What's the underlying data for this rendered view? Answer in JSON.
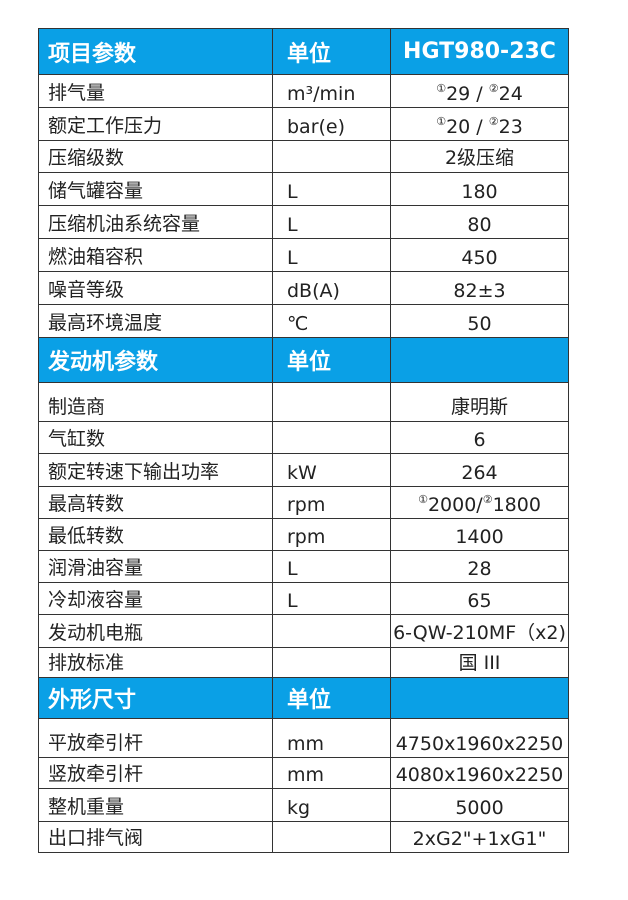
{
  "sections": [
    {
      "header": {
        "name": "项目参数",
        "unit": "单位",
        "value": "HGT980-23C"
      },
      "rows": [
        {
          "name": "排气量",
          "unit": "m³/min",
          "v1mark": "①",
          "v1": "29 / ",
          "v2mark": "②",
          "v2": "24"
        },
        {
          "name": "额定工作压力",
          "unit": "bar(e)",
          "v1mark": "①",
          "v1": "20 / ",
          "v2mark": "②",
          "v2": "23"
        },
        {
          "name": "压缩级数",
          "unit": "",
          "value": "2级压缩"
        },
        {
          "name": "储气罐容量",
          "unit": "L",
          "value": "180"
        },
        {
          "name": "压缩机油系统容量",
          "unit": "L",
          "value": "80"
        },
        {
          "name": "燃油箱容积",
          "unit": "L",
          "value": "450"
        },
        {
          "name": "噪音等级",
          "unit": "dB(A)",
          "value": "82±3"
        },
        {
          "name": "最高环境温度",
          "unit": "℃",
          "value": "50"
        }
      ]
    },
    {
      "header": {
        "name": "发动机参数",
        "unit": "单位",
        "value": ""
      },
      "rows": [
        {
          "name": "制造商",
          "unit": "",
          "value": "康明斯"
        },
        {
          "name": "气缸数",
          "unit": "",
          "value": "6"
        },
        {
          "name": "额定转速下输出功率",
          "unit": "kW",
          "value": "264"
        },
        {
          "name": "最高转数",
          "unit": "rpm",
          "v1mark": "①",
          "v1": "2000/",
          "v2mark": "②",
          "v2": "1800"
        },
        {
          "name": "最低转数",
          "unit": "rpm",
          "value": "1400"
        },
        {
          "name": "润滑油容量",
          "unit": "L",
          "value": "28"
        },
        {
          "name": "冷却液容量",
          "unit": "L",
          "value": "65"
        },
        {
          "name": "发动机电瓶",
          "unit": "",
          "value": "6-QW-210MF（x2)"
        },
        {
          "name": "排放标准",
          "unit": "",
          "value": "国 III"
        }
      ]
    },
    {
      "header": {
        "name": "外形尺寸",
        "unit": "单位",
        "value": ""
      },
      "rows": [
        {
          "name": "平放牵引杆",
          "unit": "mm",
          "value": "4750x1960x2250"
        },
        {
          "name": "竖放牵引杆",
          "unit": "mm",
          "value": "4080x1960x2250"
        },
        {
          "name": "整机重量",
          "unit": "kg",
          "value": "5000"
        },
        {
          "name": "出口排气阀",
          "unit": "",
          "value": "2xG2\"+1xG1\""
        }
      ]
    }
  ],
  "colors": {
    "header_bg": "#0aa0e6",
    "header_text": "#ffffff",
    "border": "#333333"
  }
}
